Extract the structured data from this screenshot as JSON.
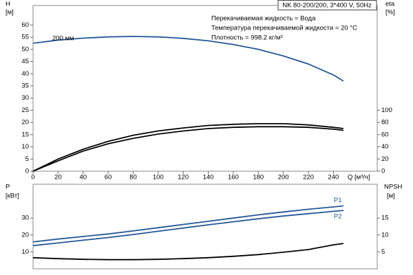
{
  "chart_data": [
    {
      "type": "line",
      "title": "NK 80-200/200, 3*400 V, 50Hz",
      "annotations": [
        "Перекачиваемая жидкость = Вода",
        "Температура перекачиваемой жидкости = 20 °C",
        "Плотность = 998.2 кг/м³"
      ],
      "xlabel": "Q [м³/ч]",
      "ylabel": [
        "H",
        "[м]"
      ],
      "y2label": [
        "eta",
        "[%]"
      ],
      "x": [
        0,
        20,
        40,
        60,
        80,
        100,
        120,
        140,
        160,
        180,
        200,
        220,
        240,
        248
      ],
      "xlim": [
        0,
        275
      ],
      "xticks": [
        0,
        20,
        40,
        60,
        80,
        100,
        120,
        140,
        160,
        180,
        200,
        220,
        240
      ],
      "ylim": [
        0,
        68
      ],
      "yticks": [
        0,
        5,
        10,
        15,
        20,
        25,
        30,
        35,
        40,
        45,
        50,
        55,
        60
      ],
      "y2lim": [
        0,
        272
      ],
      "y2ticks": [
        0,
        20,
        40,
        60,
        80,
        100
      ],
      "grid": false,
      "series": [
        {
          "name": "200 мм",
          "color": "#22579a",
          "values": [
            52.5,
            53.8,
            54.6,
            55.1,
            55.3,
            55.1,
            54.5,
            53.5,
            52,
            50,
            47.3,
            44,
            39.5,
            37
          ]
        },
        {
          "color": "#000000",
          "axis": "y2",
          "values": [
            0,
            20,
            36,
            49,
            59,
            66,
            71,
            75,
            77,
            78,
            78,
            76,
            72,
            70
          ]
        },
        {
          "color": "#000000",
          "axis": "y2",
          "values": [
            0,
            17,
            33,
            45,
            54,
            61,
            66,
            70,
            72,
            73,
            73,
            72,
            69,
            67
          ]
        }
      ]
    },
    {
      "type": "line",
      "ylabel": [
        "P",
        "[кВт]"
      ],
      "y2label": [
        "NPSH",
        "[м]"
      ],
      "x": [
        0,
        20,
        40,
        60,
        80,
        100,
        120,
        140,
        160,
        180,
        200,
        220,
        240,
        248
      ],
      "xlim": [
        0,
        275
      ],
      "ylim": [
        0,
        50
      ],
      "yticks": [
        10,
        20,
        30
      ],
      "y2lim": [
        0,
        25
      ],
      "y2ticks": [
        5,
        10,
        15
      ],
      "grid": false,
      "series": [
        {
          "name": "P1",
          "color": "#22579a",
          "values": [
            15.9,
            17.6,
            19.1,
            20.6,
            22.4,
            24.3,
            26.2,
            28.1,
            30,
            31.9,
            33.6,
            35.2,
            36.6,
            37.2
          ]
        },
        {
          "name": "P2",
          "color": "#22579a",
          "values": [
            13.7,
            15.3,
            16.9,
            18.5,
            20.3,
            22.2,
            24.1,
            26,
            27.8,
            29.6,
            31.2,
            32.6,
            34,
            34.5
          ]
        },
        {
          "color": "#000000",
          "axis": "y2",
          "values": [
            3.3,
            3,
            2.8,
            2.7,
            2.7,
            2.8,
            3,
            3.3,
            3.7,
            4.2,
            4.9,
            5.7,
            7.1,
            7.5
          ]
        }
      ]
    }
  ]
}
